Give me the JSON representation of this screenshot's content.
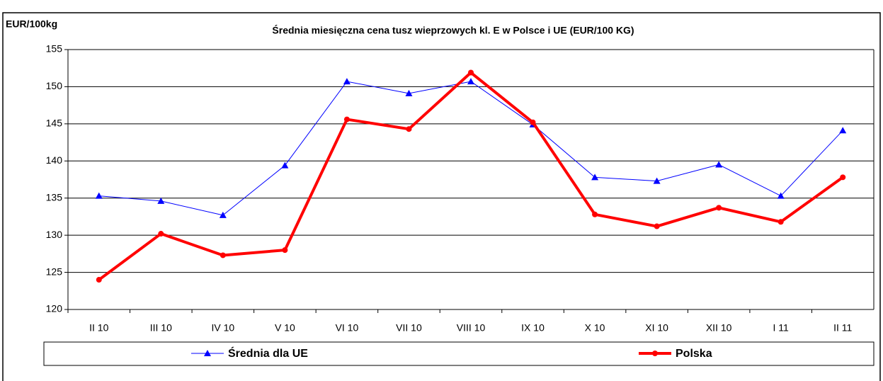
{
  "chart_data": {
    "type": "line",
    "title": "Średnia miesięczna cena tusz wieprzowych kl. E w  Polsce i UE (EUR/100 KG)",
    "y_label": "EUR/100kg",
    "categories": [
      "II 10",
      "III 10",
      "IV 10",
      "V 10",
      "VI 10",
      "VII 10",
      "VIII 10",
      "IX 10",
      "X 10",
      "XI 10",
      "XII 10",
      "I 11",
      "II 11"
    ],
    "series": [
      {
        "name": "Średnia dla  UE",
        "color": "#0000ff",
        "marker": "triangle",
        "values": [
          135.3,
          134.6,
          132.7,
          139.4,
          150.7,
          149.1,
          150.7,
          144.9,
          137.8,
          137.3,
          139.5,
          135.3,
          144.1
        ]
      },
      {
        "name": "Polska",
        "color": "#ff0000",
        "marker": "circle",
        "values": [
          124.0,
          130.2,
          127.3,
          128.0,
          145.6,
          144.3,
          151.9,
          145.2,
          132.8,
          131.2,
          133.7,
          131.8,
          137.8
        ]
      }
    ],
    "ylim": [
      120,
      155
    ],
    "yticks": [
      120,
      125,
      130,
      135,
      140,
      145,
      150,
      155
    ],
    "grid": true
  }
}
